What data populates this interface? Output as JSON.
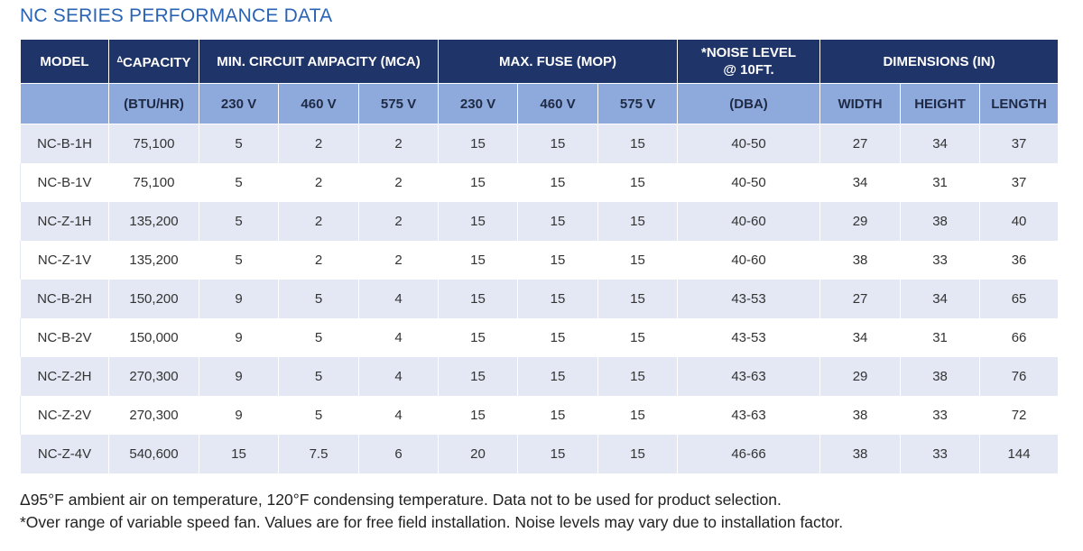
{
  "title": "NC SERIES PERFORMANCE DATA",
  "table": {
    "header_top": [
      {
        "text": "MODEL",
        "colspan": 1
      },
      {
        "marker": "Δ",
        "text": "CAPACITY",
        "colspan": 1
      },
      {
        "text": "MIN. CIRCUIT AMPACITY (MCA)",
        "colspan": 3
      },
      {
        "text": "MAX. FUSE (MOP)",
        "colspan": 3
      },
      {
        "lines": [
          "*NOISE LEVEL",
          "@ 10FT."
        ],
        "colspan": 1
      },
      {
        "text": "DIMENSIONS (IN)",
        "colspan": 3
      }
    ],
    "header_sub": [
      "(BTU/HR)",
      "230 V",
      "460 V",
      "575 V",
      "230 V",
      "460 V",
      "575 V",
      "(DBA)",
      "WIDTH",
      "HEIGHT",
      "LENGTH"
    ],
    "rows": [
      [
        "NC-B-1H",
        "75,100",
        "5",
        "2",
        "2",
        "15",
        "15",
        "15",
        "40-50",
        "27",
        "34",
        "37"
      ],
      [
        "NC-B-1V",
        "75,100",
        "5",
        "2",
        "2",
        "15",
        "15",
        "15",
        "40-50",
        "34",
        "31",
        "37"
      ],
      [
        "NC-Z-1H",
        "135,200",
        "5",
        "2",
        "2",
        "15",
        "15",
        "15",
        "40-60",
        "29",
        "38",
        "40"
      ],
      [
        "NC-Z-1V",
        "135,200",
        "5",
        "2",
        "2",
        "15",
        "15",
        "15",
        "40-60",
        "38",
        "33",
        "36"
      ],
      [
        "NC-B-2H",
        "150,200",
        "9",
        "5",
        "4",
        "15",
        "15",
        "15",
        "43-53",
        "27",
        "34",
        "65"
      ],
      [
        "NC-B-2V",
        "150,000",
        "9",
        "5",
        "4",
        "15",
        "15",
        "15",
        "43-53",
        "34",
        "31",
        "66"
      ],
      [
        "NC-Z-2H",
        "270,300",
        "9",
        "5",
        "4",
        "15",
        "15",
        "15",
        "43-63",
        "29",
        "38",
        "76"
      ],
      [
        "NC-Z-2V",
        "270,300",
        "9",
        "5",
        "4",
        "15",
        "15",
        "15",
        "43-63",
        "38",
        "33",
        "72"
      ],
      [
        "NC-Z-4V",
        "540,600",
        "15",
        "7.5",
        "6",
        "20",
        "15",
        "15",
        "46-66",
        "38",
        "33",
        "144"
      ]
    ]
  },
  "footnotes": [
    "Δ95°F ambient air on temperature, 120°F condensing temperature. Data not to be used for product selection.",
    "*Over range of variable speed fan. Values are for free field installation. Noise levels may vary due to installation factor."
  ]
}
